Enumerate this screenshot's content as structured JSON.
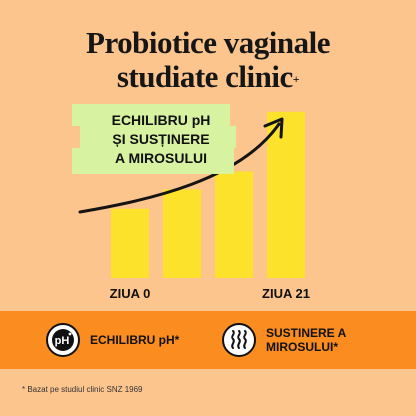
{
  "headline": {
    "line1": "Probiotice vaginale",
    "line2": "studiate clinic",
    "line2_sup": "+"
  },
  "growth_label": {
    "line1": "ECHILIBRU pH",
    "line2": "ȘI SUSȚINERE",
    "line3": "A MIROSULUI"
  },
  "chart_data": {
    "type": "bar",
    "categories": [
      "ZIUA 0",
      "",
      "",
      "ZIUA 21"
    ],
    "series": [
      {
        "values": [
          1.0,
          1.28,
          1.54,
          2.4
        ]
      }
    ],
    "ylim": [
      0,
      2.6
    ],
    "axis_labels_shown": [
      "ZIUA 0",
      "ZIUA 21"
    ],
    "trend_arrow": "rising",
    "grid": false,
    "colors": {
      "bar": "#fde22c",
      "arrow": "#141414"
    }
  },
  "features": [
    {
      "icon": "ph-badge-icon",
      "icon_text": "pH",
      "label_line1": "ECHILIBRU pH*",
      "label_line2": ""
    },
    {
      "icon": "odor-waves-icon",
      "label_line1": "SUSTINERE A",
      "label_line2": "MIROSULUI*"
    }
  ],
  "footnote": "* Bazat pe studiul clinic SNZ 1969",
  "colors": {
    "background": "#fcc58e",
    "band": "#fb8c1f",
    "label_bg": "#d7f2a0"
  }
}
